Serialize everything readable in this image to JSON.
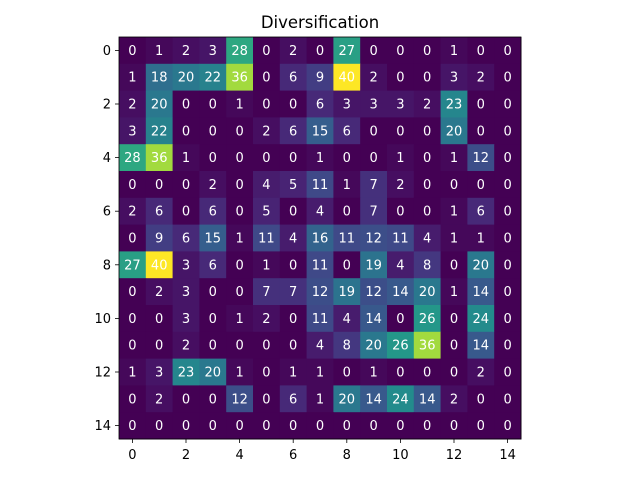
{
  "chart_data": {
    "type": "heatmap",
    "title": "Diversification",
    "xlabel": "",
    "ylabel": "",
    "colormap": "viridis",
    "vmin": 0,
    "vmax": 40,
    "x_ticks": [
      0,
      2,
      4,
      6,
      8,
      10,
      12,
      14
    ],
    "y_ticks": [
      0,
      2,
      4,
      6,
      8,
      10,
      12,
      14
    ],
    "rows": [
      [
        0,
        1,
        2,
        3,
        28,
        0,
        2,
        0,
        27,
        0,
        0,
        0,
        1,
        0,
        0
      ],
      [
        1,
        18,
        20,
        22,
        36,
        0,
        6,
        9,
        40,
        2,
        0,
        0,
        3,
        2,
        0
      ],
      [
        2,
        20,
        0,
        0,
        1,
        0,
        0,
        6,
        3,
        3,
        3,
        2,
        23,
        0,
        0
      ],
      [
        3,
        22,
        0,
        0,
        0,
        2,
        6,
        15,
        6,
        0,
        0,
        0,
        20,
        0,
        0
      ],
      [
        28,
        36,
        1,
        0,
        0,
        0,
        0,
        1,
        0,
        0,
        1,
        0,
        1,
        12,
        0
      ],
      [
        0,
        0,
        0,
        2,
        0,
        4,
        5,
        11,
        1,
        7,
        2,
        0,
        0,
        0,
        0
      ],
      [
        2,
        6,
        0,
        6,
        0,
        5,
        0,
        4,
        0,
        7,
        0,
        0,
        1,
        6,
        0
      ],
      [
        0,
        9,
        6,
        15,
        1,
        11,
        4,
        16,
        11,
        12,
        11,
        4,
        1,
        1,
        0
      ],
      [
        27,
        40,
        3,
        6,
        0,
        1,
        0,
        11,
        0,
        19,
        4,
        8,
        0,
        20,
        0
      ],
      [
        0,
        2,
        3,
        0,
        0,
        7,
        7,
        12,
        19,
        12,
        14,
        20,
        1,
        14,
        0
      ],
      [
        0,
        0,
        3,
        0,
        1,
        2,
        0,
        11,
        4,
        14,
        0,
        26,
        0,
        24,
        0
      ],
      [
        0,
        0,
        2,
        0,
        0,
        0,
        0,
        4,
        8,
        20,
        26,
        36,
        0,
        14,
        0
      ],
      [
        1,
        3,
        23,
        20,
        1,
        0,
        1,
        1,
        0,
        1,
        0,
        0,
        0,
        2,
        0
      ],
      [
        0,
        2,
        0,
        0,
        12,
        0,
        6,
        1,
        20,
        14,
        24,
        14,
        2,
        0,
        0
      ],
      [
        0,
        0,
        0,
        0,
        0,
        0,
        0,
        0,
        0,
        0,
        0,
        0,
        0,
        0,
        0
      ]
    ]
  }
}
